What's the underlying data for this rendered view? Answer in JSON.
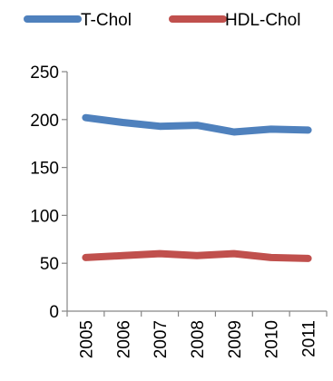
{
  "chart_data": {
    "type": "line",
    "categories": [
      "2005",
      "2006",
      "2007",
      "2008",
      "2009",
      "2010",
      "2011"
    ],
    "series": [
      {
        "name": "T-Chol",
        "color": "#4F81BD",
        "values": [
          202,
          197,
          193,
          194,
          187,
          190,
          189
        ]
      },
      {
        "name": "HDL-Chol",
        "color": "#C0504D",
        "values": [
          56,
          58,
          60,
          58,
          60,
          56,
          55
        ]
      }
    ],
    "title": "",
    "xlabel": "",
    "ylabel": "",
    "ylim": [
      0,
      250
    ],
    "yticks": [
      "0",
      "50",
      "100",
      "150",
      "200",
      "250"
    ],
    "grid": false,
    "legend": "top"
  }
}
